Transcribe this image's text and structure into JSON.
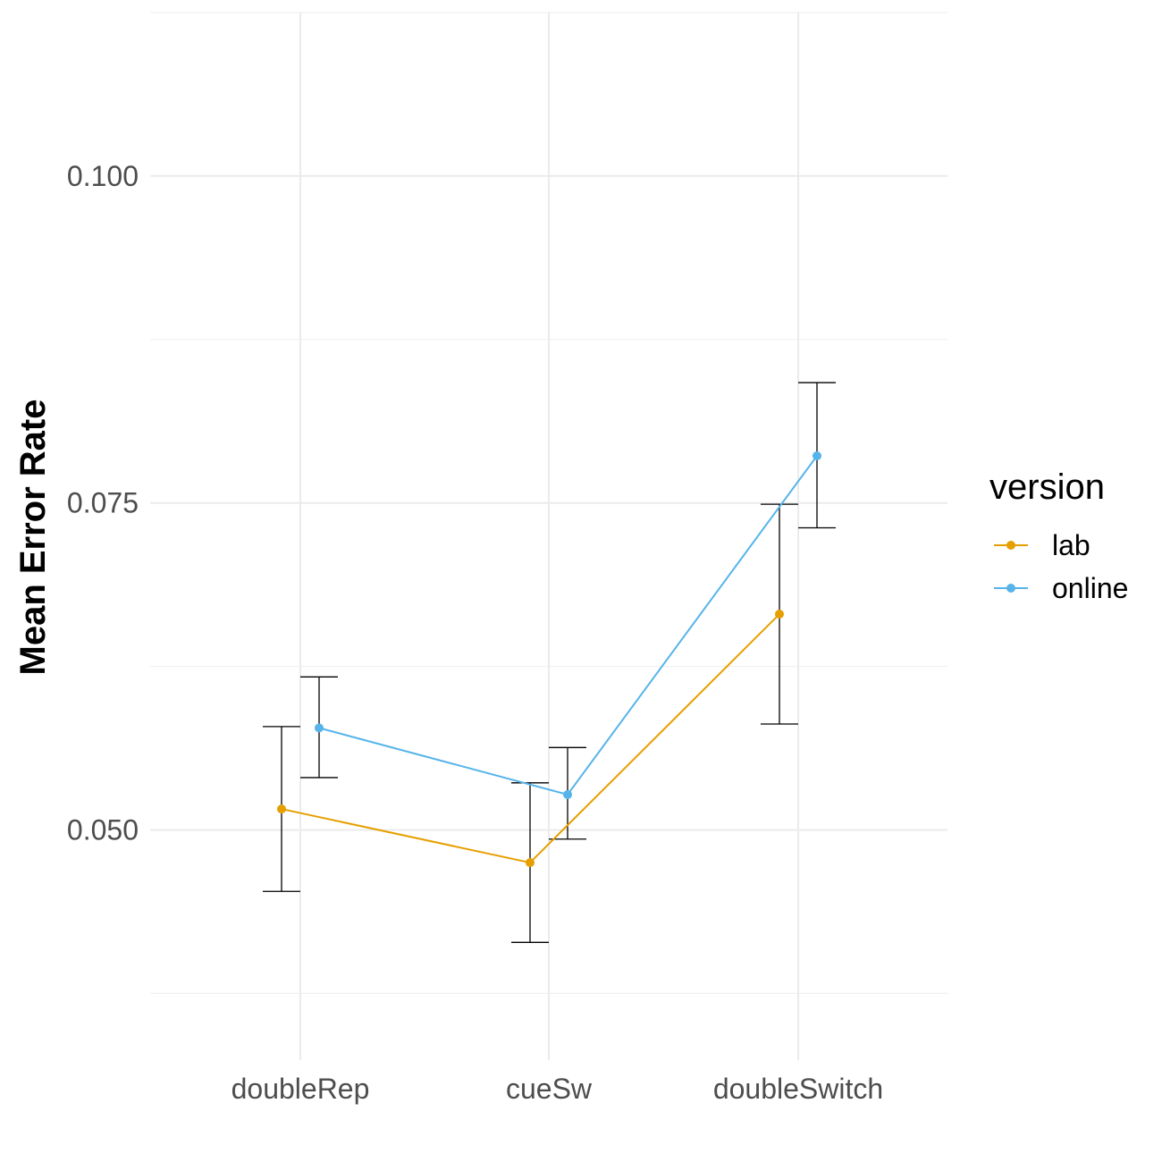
{
  "chart_data": {
    "type": "line",
    "categories": [
      "doubleRep",
      "cueSw",
      "doubleSwitch"
    ],
    "xlabel": "",
    "ylabel": "Mean Error Rate",
    "ylim": [
      0.0324,
      0.1125
    ],
    "yticks": [
      0.05,
      0.075,
      0.1
    ],
    "ytick_labels": [
      "0.050",
      "0.075",
      "0.100"
    ],
    "grid": true,
    "legend": {
      "title": "version",
      "position": "right"
    },
    "series": [
      {
        "name": "lab",
        "color": "#E69F00",
        "values": [
          0.0516,
          0.0475,
          0.0665
        ],
        "error_low": [
          0.0453,
          0.0414,
          0.0581
        ],
        "error_high": [
          0.0579,
          0.0536,
          0.0749
        ]
      },
      {
        "name": "online",
        "color": "#56B4E9",
        "values": [
          0.0578,
          0.0527,
          0.0786
        ],
        "error_low": [
          0.054,
          0.0493,
          0.0731
        ],
        "error_high": [
          0.0617,
          0.0563,
          0.0842
        ]
      }
    ]
  }
}
